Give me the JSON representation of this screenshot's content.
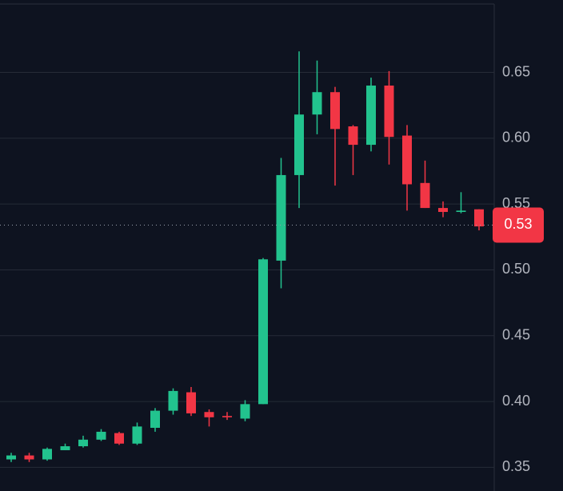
{
  "chart_data": {
    "type": "candlestick",
    "open": [
      0.356,
      0.359,
      0.356,
      0.363,
      0.366,
      0.371,
      0.376,
      0.368,
      0.38,
      0.393,
      0.407,
      0.392,
      0.389,
      0.387,
      0.398,
      0.507,
      0.572,
      0.618,
      0.635,
      0.609,
      0.595,
      0.64,
      0.602,
      0.566,
      0.547,
      0.544,
      0.546
    ],
    "high": [
      0.361,
      0.361,
      0.365,
      0.368,
      0.374,
      0.379,
      0.377,
      0.384,
      0.395,
      0.41,
      0.411,
      0.394,
      0.392,
      0.401,
      0.509,
      0.585,
      0.666,
      0.659,
      0.639,
      0.61,
      0.646,
      0.651,
      0.61,
      0.583,
      0.552,
      0.559,
      0.546
    ],
    "low": [
      0.354,
      0.354,
      0.355,
      0.363,
      0.365,
      0.37,
      0.367,
      0.367,
      0.377,
      0.39,
      0.389,
      0.381,
      0.386,
      0.385,
      0.398,
      0.486,
      0.547,
      0.603,
      0.564,
      0.572,
      0.59,
      0.58,
      0.545,
      0.547,
      0.54,
      0.543,
      0.53
    ],
    "close": [
      0.359,
      0.356,
      0.364,
      0.366,
      0.371,
      0.377,
      0.368,
      0.381,
      0.393,
      0.408,
      0.391,
      0.388,
      0.388,
      0.398,
      0.508,
      0.572,
      0.618,
      0.635,
      0.607,
      0.595,
      0.64,
      0.601,
      0.565,
      0.547,
      0.544,
      0.545,
      0.533
    ],
    "up_color": "#22c38e",
    "down_color": "#f23645",
    "ylim": [
      0.332,
      0.705
    ],
    "yticks": [
      0.35,
      {
        "value": 0.4,
        "label": "0.40"
      },
      0.45,
      {
        "value": 0.5,
        "label": "0.50"
      },
      0.55,
      {
        "value": 0.6,
        "label": "0.60"
      },
      0.65
    ],
    "grid": true,
    "last_price": {
      "value": 0.534,
      "label": "0.53"
    }
  }
}
